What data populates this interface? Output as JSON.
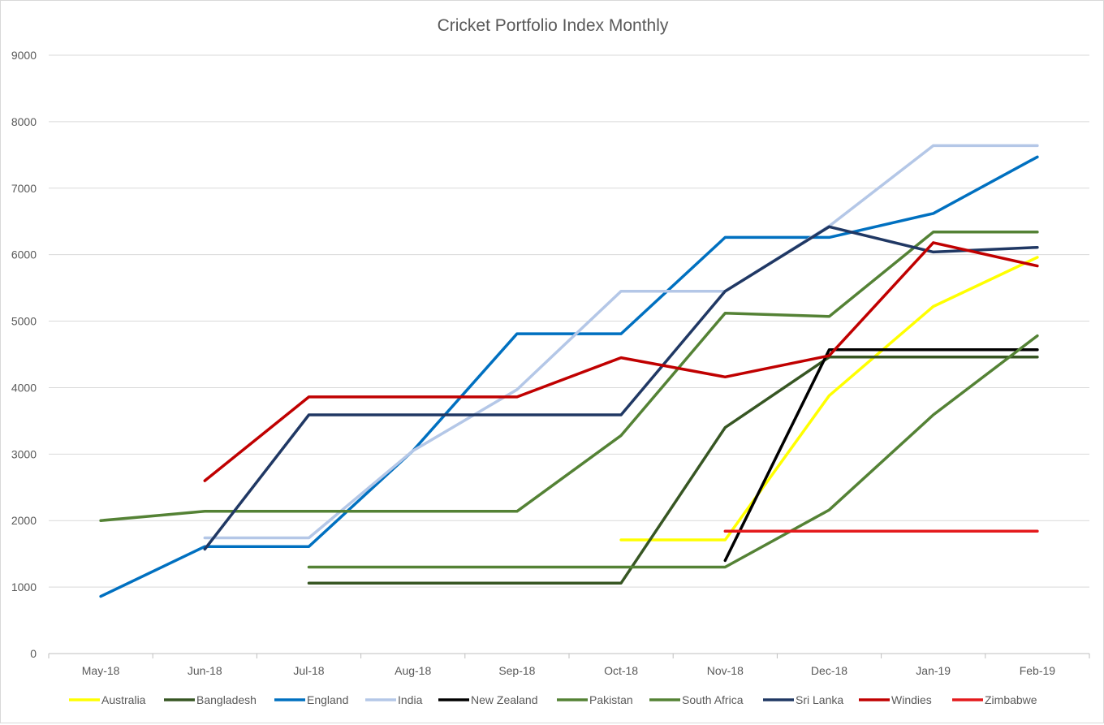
{
  "chart_data": {
    "type": "line",
    "title": "Cricket Portfolio Index Monthly",
    "xlabel": "",
    "ylabel": "",
    "ylim": [
      0,
      9000
    ],
    "yticks": [
      0,
      1000,
      2000,
      3000,
      4000,
      5000,
      6000,
      7000,
      8000,
      9000
    ],
    "grid": true,
    "legend": "bottom",
    "categories": [
      "May-18",
      "Jun-18",
      "Jul-18",
      "Aug-18",
      "Sep-18",
      "Oct-18",
      "Nov-18",
      "Dec-18",
      "Jan-19",
      "Feb-19"
    ],
    "series": [
      {
        "name": "Australia",
        "color": "#ffff00",
        "values": [
          null,
          null,
          null,
          null,
          null,
          1710,
          1710,
          3880,
          5220,
          5960
        ]
      },
      {
        "name": "Bangladesh",
        "color": "#375623",
        "values": [
          null,
          null,
          1060,
          1060,
          1060,
          1060,
          3400,
          4460,
          4460,
          4460
        ]
      },
      {
        "name": "England",
        "color": "#0070c0",
        "values": [
          860,
          1610,
          1610,
          3050,
          4810,
          4810,
          6260,
          6260,
          6620,
          7470
        ]
      },
      {
        "name": "India",
        "color": "#b4c7e7",
        "values": [
          null,
          1740,
          1740,
          3050,
          3970,
          5450,
          5450,
          6430,
          7640,
          7640
        ]
      },
      {
        "name": "New Zealand",
        "color": "#000000",
        "values": [
          null,
          null,
          null,
          null,
          null,
          null,
          1400,
          4570,
          4570,
          4570
        ]
      },
      {
        "name": "Pakistan",
        "color": "#548235",
        "values": [
          null,
          null,
          1300,
          1300,
          1300,
          1300,
          1300,
          2160,
          3590,
          4780
        ]
      },
      {
        "name": "South Africa",
        "color": "#548235",
        "values": [
          2000,
          2140,
          2140,
          2140,
          2140,
          3280,
          5120,
          5070,
          6340,
          6340
        ]
      },
      {
        "name": "Sri Lanka",
        "color": "#203864",
        "values": [
          null,
          1570,
          3590,
          3590,
          3590,
          3590,
          5450,
          6420,
          6040,
          6110
        ]
      },
      {
        "name": "Windies",
        "color": "#c00000",
        "values": [
          null,
          2600,
          3860,
          3860,
          3860,
          4450,
          4160,
          4480,
          6180,
          5830
        ]
      },
      {
        "name": "Zimbabwe",
        "color": "#e41a1c",
        "values": [
          null,
          null,
          null,
          null,
          null,
          null,
          1840,
          1840,
          1840,
          1840
        ]
      }
    ]
  }
}
